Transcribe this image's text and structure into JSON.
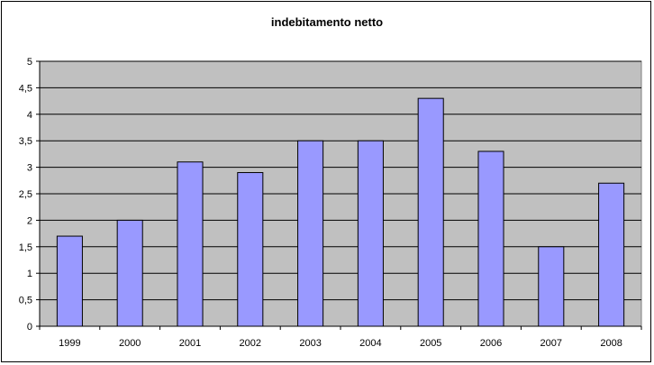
{
  "chart_data": {
    "type": "bar",
    "title": "indebitamento netto",
    "xlabel": "",
    "ylabel": "",
    "categories": [
      "1999",
      "2000",
      "2001",
      "2002",
      "2003",
      "2004",
      "2005",
      "2006",
      "2007",
      "2008"
    ],
    "values": [
      1.7,
      2.0,
      3.1,
      2.9,
      3.5,
      3.5,
      4.3,
      3.3,
      1.5,
      2.7
    ],
    "ylim": [
      0,
      5
    ],
    "yticks": [
      0,
      0.5,
      1,
      1.5,
      2,
      2.5,
      3,
      3.5,
      4,
      4.5,
      5
    ],
    "ytick_labels": [
      "0",
      "0,5",
      "1",
      "1,5",
      "2",
      "2,5",
      "3",
      "3,5",
      "4",
      "4,5",
      "5"
    ],
    "grid": true,
    "legend": "none",
    "colors": {
      "plot_background": "#c0c0c0",
      "bar_fill": "#9999ff",
      "bar_stroke": "#000000",
      "gridline": "#000000"
    }
  }
}
